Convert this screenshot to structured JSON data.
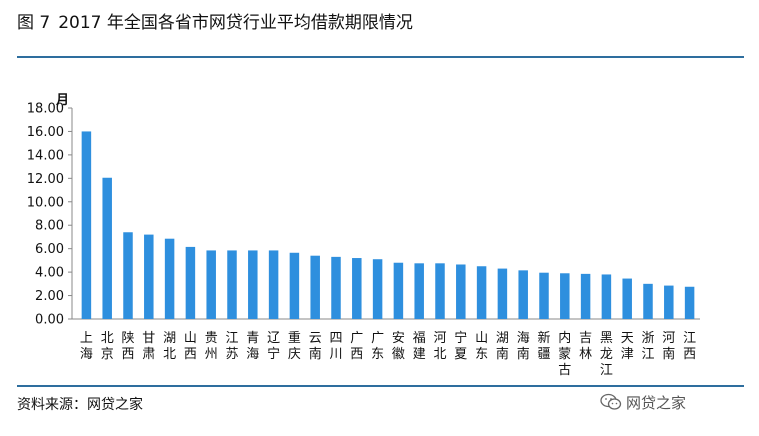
{
  "title": {
    "figure_label": "图 7",
    "text": "2017 年全国各省市网贷行业平均借款期限情况"
  },
  "source": "资料来源：网贷之家",
  "watermark": {
    "icon": "wechat-icon",
    "text": "网贷之家"
  },
  "colors": {
    "bar": "#2e8fde",
    "rule": "#2e6e9e",
    "axis": "#888888"
  },
  "chart_data": {
    "type": "bar",
    "ylabel": "月",
    "ylim": [
      0,
      18
    ],
    "ytick_step": 2,
    "yticks": [
      "0.00",
      "2.00",
      "4.00",
      "6.00",
      "8.00",
      "10.00",
      "12.00",
      "14.00",
      "16.00",
      "18.00"
    ],
    "grid": false,
    "categories": [
      "上海",
      "北京",
      "陕西",
      "甘肃",
      "湖北",
      "山西",
      "贵州",
      "江苏",
      "青海",
      "辽宁",
      "重庆",
      "云南",
      "四川",
      "广西",
      "广东",
      "安徽",
      "福建",
      "河北",
      "宁夏",
      "山东",
      "湖南",
      "海南",
      "新疆",
      "内蒙古",
      "吉林",
      "黑龙江",
      "天津",
      "浙江",
      "河南",
      "江西"
    ],
    "values": [
      16.0,
      12.05,
      7.4,
      7.2,
      6.85,
      6.15,
      5.85,
      5.85,
      5.85,
      5.85,
      5.65,
      5.4,
      5.3,
      5.2,
      5.1,
      4.8,
      4.75,
      4.75,
      4.65,
      4.5,
      4.3,
      4.15,
      3.95,
      3.9,
      3.85,
      3.8,
      3.45,
      3.0,
      2.85,
      2.75
    ]
  }
}
